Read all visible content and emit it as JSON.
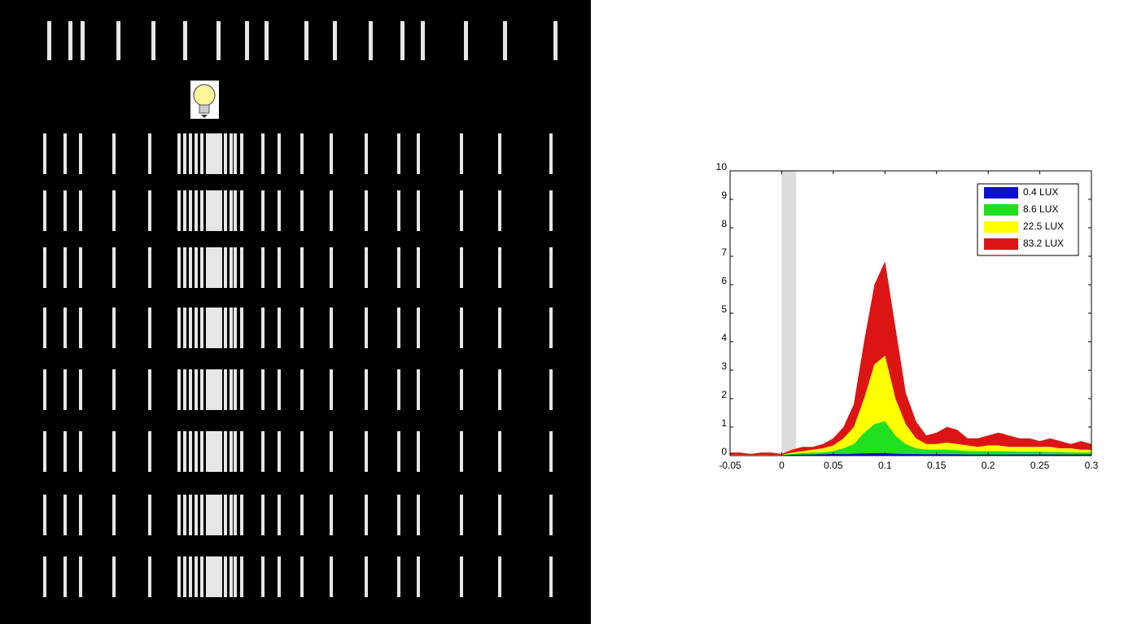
{
  "chart_data": {
    "type": "area",
    "x": [
      -0.05,
      -0.04,
      -0.03,
      -0.02,
      -0.01,
      0,
      0.01,
      0.02,
      0.03,
      0.04,
      0.05,
      0.06,
      0.07,
      0.08,
      0.09,
      0.1,
      0.11,
      0.12,
      0.13,
      0.14,
      0.15,
      0.16,
      0.17,
      0.18,
      0.19,
      0.2,
      0.21,
      0.22,
      0.23,
      0.24,
      0.25,
      0.26,
      0.27,
      0.28,
      0.29,
      0.3
    ],
    "series": [
      {
        "name": "0.4 LUX",
        "color": "#0a10d0",
        "values": [
          0,
          0,
          0,
          0,
          0,
          0,
          0.02,
          0.03,
          0.03,
          0.04,
          0.05,
          0.05,
          0.06,
          0.07,
          0.08,
          0.08,
          0.06,
          0.05,
          0.05,
          0.04,
          0.04,
          0.04,
          0.04,
          0.03,
          0.03,
          0.03,
          0.03,
          0.03,
          0.03,
          0.03,
          0.03,
          0.03,
          0.03,
          0.03,
          0.03,
          0.03
        ]
      },
      {
        "name": "8.6 LUX",
        "color": "#20e020",
        "values": [
          0,
          0,
          0,
          0,
          0,
          0.01,
          0.05,
          0.08,
          0.1,
          0.1,
          0.15,
          0.25,
          0.4,
          0.8,
          1.1,
          1.2,
          0.7,
          0.4,
          0.25,
          0.2,
          0.2,
          0.2,
          0.18,
          0.15,
          0.15,
          0.15,
          0.15,
          0.14,
          0.13,
          0.13,
          0.13,
          0.12,
          0.12,
          0.1,
          0.1,
          0.1
        ]
      },
      {
        "name": "22.5 LUX",
        "color": "#ffff00",
        "values": [
          0.02,
          0.02,
          0.02,
          0.02,
          0.02,
          0.02,
          0.1,
          0.15,
          0.2,
          0.25,
          0.35,
          0.6,
          1.0,
          2.0,
          3.2,
          3.5,
          2.0,
          1.1,
          0.6,
          0.4,
          0.4,
          0.45,
          0.4,
          0.35,
          0.3,
          0.35,
          0.35,
          0.3,
          0.3,
          0.3,
          0.3,
          0.3,
          0.25,
          0.25,
          0.2,
          0.2
        ]
      },
      {
        "name": "83.2 LUX",
        "color": "#dc1414",
        "values": [
          0.1,
          0.1,
          0.05,
          0.1,
          0.1,
          0.05,
          0.2,
          0.3,
          0.3,
          0.4,
          0.6,
          1.0,
          1.8,
          4.0,
          6.0,
          6.8,
          4.5,
          2.2,
          1.2,
          0.7,
          0.8,
          1.0,
          0.9,
          0.6,
          0.6,
          0.7,
          0.8,
          0.7,
          0.6,
          0.6,
          0.5,
          0.6,
          0.5,
          0.4,
          0.5,
          0.4
        ]
      }
    ],
    "shaded_region": [
      0,
      0.014
    ],
    "xlim": [
      -0.05,
      0.3
    ],
    "xticks": [
      -0.05,
      0,
      0.05,
      0.1,
      0.15,
      0.2,
      0.25,
      0.3
    ],
    "ylim": [
      0,
      10
    ],
    "yticks": [
      0,
      1,
      2,
      3,
      4,
      5,
      6,
      7,
      8,
      9,
      10
    ],
    "legend": "top-right"
  }
}
